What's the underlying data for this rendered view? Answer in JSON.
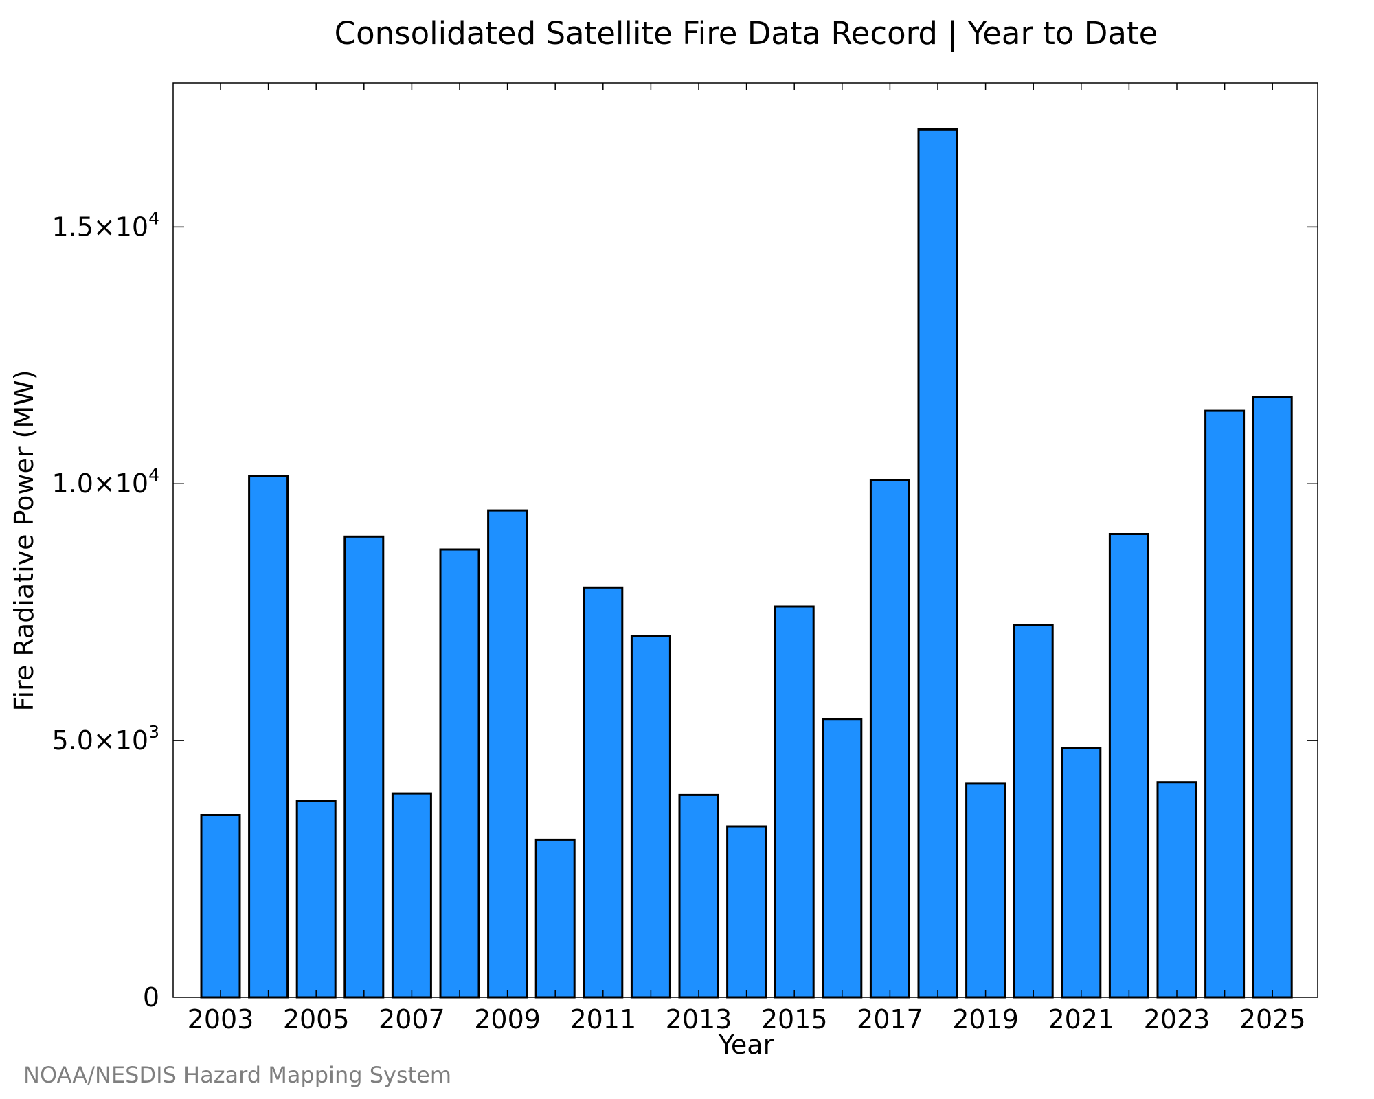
{
  "chart_data": {
    "type": "bar",
    "title": "Consolidated Satellite Fire Data Record | Year to Date",
    "xlabel": "Year",
    "ylabel": "Fire Radiative Power (MW)",
    "categories": [
      "2003",
      "2004",
      "2005",
      "2006",
      "2007",
      "2008",
      "2009",
      "2010",
      "2011",
      "2012",
      "2013",
      "2014",
      "2015",
      "2016",
      "2017",
      "2018",
      "2019",
      "2020",
      "2021",
      "2022",
      "2023",
      "2024",
      "2025"
    ],
    "values": [
      3550,
      10150,
      3830,
      8970,
      3970,
      8720,
      9480,
      3070,
      7980,
      7030,
      3940,
      3330,
      7610,
      5420,
      10070,
      16900,
      4160,
      7250,
      4850,
      9020,
      4190,
      11420,
      11690
    ],
    "ylim": [
      0,
      17800
    ],
    "x_tick_labels": [
      "2003",
      "2005",
      "2007",
      "2009",
      "2011",
      "2013",
      "2015",
      "2017",
      "2019",
      "2021",
      "2023",
      "2025"
    ],
    "y_ticks": [
      {
        "value": 0,
        "mantissa": "0",
        "exponent": ""
      },
      {
        "value": 5000,
        "mantissa": "5.0×10",
        "exponent": "3"
      },
      {
        "value": 10000,
        "mantissa": "1.0×10",
        "exponent": "4"
      },
      {
        "value": 15000,
        "mantissa": "1.5×10",
        "exponent": "4"
      }
    ],
    "bar_color": "#1e90ff",
    "grid": false,
    "credit": "NOAA/NESDIS Hazard Mapping System"
  }
}
